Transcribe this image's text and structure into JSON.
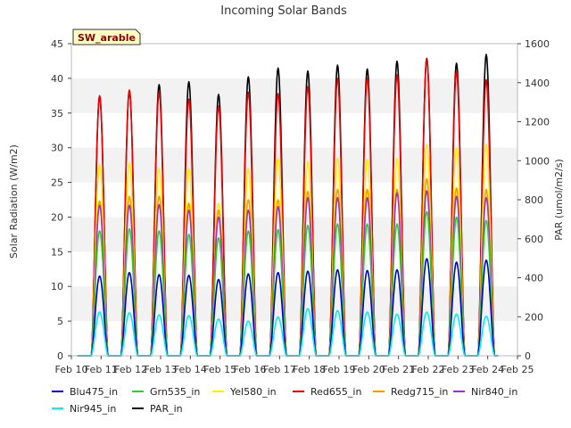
{
  "chart_data": {
    "type": "line",
    "title": "Incoming Solar Bands",
    "ylabel": "Solar Radiation (W/m2)",
    "y2label": "PAR (umol/m2/s)",
    "site_label": "SW_arable",
    "x_ticks": [
      "Feb 10",
      "Feb 11",
      "Feb 12",
      "Feb 13",
      "Feb 14",
      "Feb 15",
      "Feb 16",
      "Feb 17",
      "Feb 18",
      "Feb 19",
      "Feb 20",
      "Feb 21",
      "Feb 22",
      "Feb 23",
      "Feb 24",
      "Feb 25"
    ],
    "xlim": [
      10,
      25
    ],
    "ylim": [
      0,
      45
    ],
    "y_ticks": [
      0,
      5,
      10,
      15,
      20,
      25,
      30,
      35,
      40,
      45
    ],
    "y2lim": [
      0,
      1600
    ],
    "y2_ticks": [
      0,
      200,
      400,
      600,
      800,
      1000,
      1200,
      1400,
      1600
    ],
    "grid": "horizontal bands",
    "legend_position": "bottom",
    "days": [
      "Feb 11",
      "Feb 12",
      "Feb 13",
      "Feb 14",
      "Feb 15",
      "Feb 16",
      "Feb 17",
      "Feb 18",
      "Feb 19",
      "Feb 20",
      "Feb 21",
      "Feb 22",
      "Feb 23",
      "Feb 24"
    ],
    "series": [
      {
        "name": "Blu475_in",
        "axis": "left",
        "color": "#0000cc",
        "daily_peaks": [
          11.5,
          12,
          11.7,
          11.6,
          11,
          11.8,
          12,
          12.2,
          12.4,
          12.3,
          12.4,
          14,
          13.5,
          13.8
        ]
      },
      {
        "name": "Grn535_in",
        "axis": "left",
        "color": "#33cc33",
        "daily_peaks": [
          18,
          18.3,
          18,
          17.5,
          17,
          18,
          18.2,
          18.8,
          19,
          19,
          19,
          20.8,
          20,
          19.5
        ]
      },
      {
        "name": "Yel580_in",
        "axis": "left",
        "color": "#ffee00",
        "daily_peaks": [
          27.5,
          27.8,
          27,
          27,
          22,
          27,
          28.5,
          28,
          28.5,
          28.3,
          28.5,
          30.5,
          30,
          30.5
        ]
      },
      {
        "name": "Red655_in",
        "axis": "left",
        "color": "#ee0000",
        "daily_peaks": [
          37.5,
          38.3,
          38,
          37,
          36,
          38,
          37.8,
          38.8,
          40,
          40,
          40.5,
          42.8,
          41,
          39.8
        ]
      },
      {
        "name": "Redg715_in",
        "axis": "left",
        "color": "#ff9900",
        "daily_peaks": [
          22.3,
          23,
          23,
          22,
          21,
          22.5,
          22.5,
          23.7,
          24,
          24,
          24,
          25.5,
          24.2,
          24
        ]
      },
      {
        "name": "Nir840_in",
        "axis": "left",
        "color": "#9933cc",
        "daily_peaks": [
          21.7,
          21.7,
          21.8,
          21,
          20,
          21,
          21.5,
          22.8,
          22.8,
          22.8,
          23.5,
          23.8,
          23,
          22.8
        ]
      },
      {
        "name": "Nir945_in",
        "axis": "left",
        "color": "#00eeee",
        "daily_peaks": [
          6.3,
          6.2,
          5.9,
          5.8,
          5.3,
          5,
          5.6,
          6.8,
          6.5,
          6.3,
          6,
          6.3,
          6,
          5.7
        ]
      },
      {
        "name": "PAR_in",
        "axis": "right",
        "color": "#000000",
        "daily_peaks": [
          1330,
          1360,
          1390,
          1405,
          1340,
          1430,
          1475,
          1460,
          1490,
          1470,
          1510,
          1525,
          1500,
          1545
        ]
      }
    ]
  }
}
